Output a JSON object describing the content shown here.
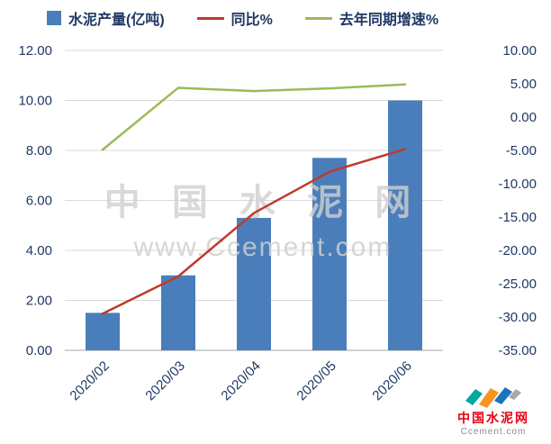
{
  "legend": [
    {
      "label": "水泥产量(亿吨)",
      "type": "bar",
      "color": "#4A7EBB"
    },
    {
      "label": "同比%",
      "type": "line",
      "color": "#C0392B"
    },
    {
      "label": "去年同期增速%",
      "type": "line",
      "color": "#9BBB59"
    }
  ],
  "watermark": {
    "line1": "中 国 水 泥 网",
    "line2": "www.Ccement.com"
  },
  "logo": {
    "title": "中国水泥网",
    "subtitle": "Ccement.com"
  },
  "colors": {
    "axis_text": "#1F3864",
    "gridline": "#D9D9D9",
    "axis_line": "#A6A6A6",
    "bar": "#4A7EBB",
    "yoy_line": "#C0392B",
    "lastyear_line": "#9BBB59"
  },
  "chart_data": {
    "type": "combo_bar_line",
    "categories": [
      "2020/02",
      "2020/03",
      "2020/04",
      "2020/05",
      "2020/06"
    ],
    "series": [
      {
        "name": "水泥产量(亿吨)",
        "type": "bar",
        "axis": "left",
        "color": "#4A7EBB",
        "values": [
          1.5,
          3.0,
          5.3,
          7.7,
          10.0
        ]
      },
      {
        "name": "同比%",
        "type": "line",
        "axis": "right",
        "color": "#C0392B",
        "values": [
          -29.5,
          -23.9,
          -14.4,
          -8.2,
          -4.8
        ]
      },
      {
        "name": "去年同期增速%",
        "type": "line",
        "axis": "right",
        "color": "#9BBB59",
        "values": [
          -4.9,
          4.4,
          3.9,
          4.3,
          4.9
        ]
      }
    ],
    "left_axis": {
      "min": 0,
      "max": 12,
      "step": 2,
      "ticks": [
        "12.00",
        "10.00",
        "8.00",
        "6.00",
        "4.00",
        "2.00",
        "0.00"
      ]
    },
    "right_axis": {
      "min": -35,
      "max": 10,
      "step": 5,
      "ticks": [
        "10.00",
        "5.00",
        "0.00",
        "-5.00",
        "-10.00",
        "-15.00",
        "-20.00",
        "-25.00",
        "-30.00",
        "-35.00"
      ]
    },
    "grid": true,
    "legend_position": "top",
    "title": ""
  }
}
